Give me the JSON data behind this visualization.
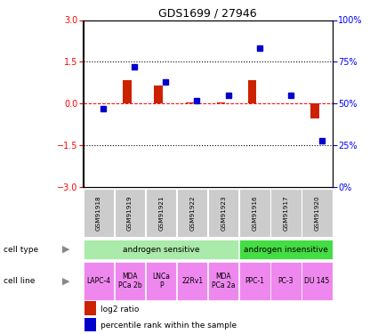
{
  "title": "GDS1699 / 27946",
  "samples": [
    "GSM91918",
    "GSM91919",
    "GSM91921",
    "GSM91922",
    "GSM91923",
    "GSM91916",
    "GSM91917",
    "GSM91920"
  ],
  "log2_ratio": [
    0.0,
    0.85,
    0.65,
    0.05,
    0.05,
    0.85,
    0.0,
    -0.55
  ],
  "percentile_rank": [
    47,
    72,
    63,
    52,
    55,
    83,
    55,
    28
  ],
  "cell_type_groups": [
    {
      "label": "androgen sensitive",
      "start": 0,
      "end": 5,
      "color": "#aaeaaa"
    },
    {
      "label": "androgen insensitive",
      "start": 5,
      "end": 8,
      "color": "#44dd44"
    }
  ],
  "cell_lines": [
    {
      "label": "LAPC-4",
      "start": 0,
      "end": 1
    },
    {
      "label": "MDA\nPCa 2b",
      "start": 1,
      "end": 2
    },
    {
      "label": "LNCa\nP",
      "start": 2,
      "end": 3
    },
    {
      "label": "22Rv1",
      "start": 3,
      "end": 4
    },
    {
      "label": "MDA\nPCa 2a",
      "start": 4,
      "end": 5
    },
    {
      "label": "PPC-1",
      "start": 5,
      "end": 6
    },
    {
      "label": "PC-3",
      "start": 6,
      "end": 7
    },
    {
      "label": "DU 145",
      "start": 7,
      "end": 8
    }
  ],
  "cell_line_color": "#ee88ee",
  "bar_color_red": "#cc2200",
  "bar_color_blue": "#0000cc",
  "ylim_left": [
    -3,
    3
  ],
  "ylim_right": [
    0,
    100
  ],
  "yticks_left": [
    -3,
    -1.5,
    0,
    1.5,
    3
  ],
  "yticks_right": [
    0,
    25,
    50,
    75,
    100
  ],
  "ytick_labels_right": [
    "0%",
    "25%",
    "50%",
    "75%",
    "100%"
  ],
  "hline_y": [
    1.5,
    -1.5
  ],
  "gsm_box_color": "#cccccc",
  "background_color": "#ffffff",
  "n_samples": 8
}
